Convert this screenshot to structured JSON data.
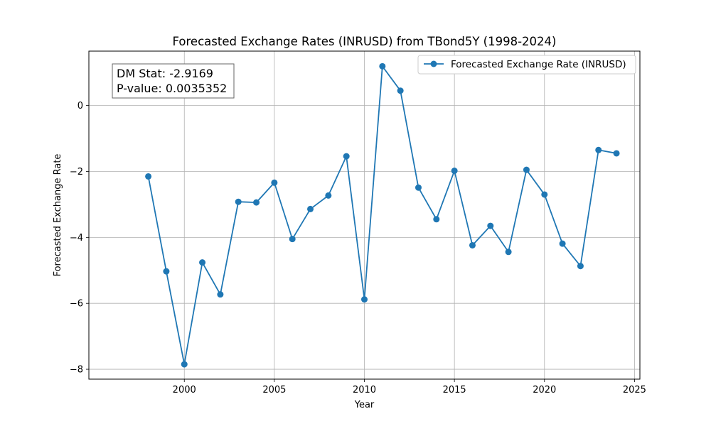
{
  "chart_data": {
    "type": "line",
    "title": "Forecasted Exchange Rates (INRUSD) from TBond5Y (1998-2024)",
    "xlabel": "Year",
    "ylabel": "Forecasted Exchange Rate",
    "xlim": [
      1994.7,
      2025.3
    ],
    "ylim": [
      -8.3,
      1.65
    ],
    "xticks": [
      2000,
      2005,
      2010,
      2015,
      2020,
      2025
    ],
    "yticks": [
      -8,
      -6,
      -4,
      -2,
      0
    ],
    "grid": true,
    "legend_position": "top-right",
    "series": [
      {
        "name": "Forecasted Exchange Rate (INRUSD)",
        "color": "#1f77b4",
        "marker": "circle",
        "x": [
          1998,
          1999,
          2000,
          2001,
          2002,
          2003,
          2004,
          2005,
          2006,
          2007,
          2008,
          2009,
          2010,
          2011,
          2012,
          2013,
          2014,
          2015,
          2016,
          2017,
          2018,
          2019,
          2020,
          2021,
          2022,
          2023,
          2024
        ],
        "y": [
          -2.15,
          -5.03,
          -7.85,
          -4.76,
          -5.73,
          -2.92,
          -2.94,
          -2.34,
          -4.05,
          -3.14,
          -2.73,
          -1.54,
          -5.88,
          1.19,
          0.45,
          -2.49,
          -3.45,
          -1.98,
          -4.24,
          -3.65,
          -4.44,
          -1.95,
          -2.7,
          -4.19,
          -4.87,
          -1.35,
          -1.45
        ]
      }
    ],
    "annotations": [
      {
        "text": "DM Stat: -2.9169"
      },
      {
        "text": "P-value: 0.0035352"
      }
    ]
  }
}
